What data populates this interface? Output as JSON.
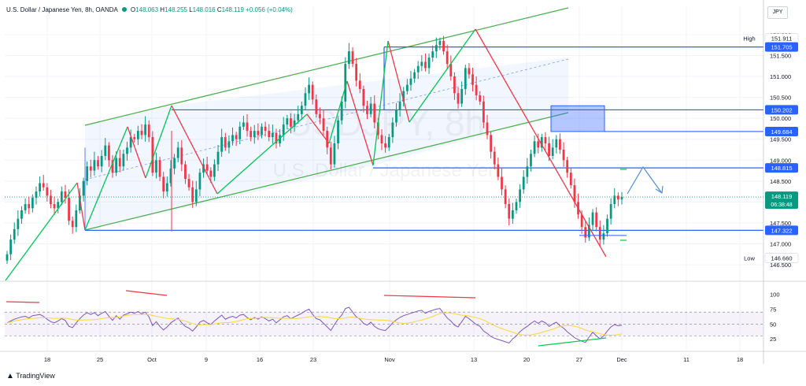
{
  "header": {
    "symbol": "U.S. Dollar / Japanese Yen, 8h, OANDA",
    "o_label": "O",
    "o": "148.063",
    "h_label": "H",
    "h": "148.255",
    "l_label": "L",
    "l": "148.016",
    "c_label": "C",
    "c": "148.119",
    "change": "+0.056 (+0.04%)"
  },
  "currency": "JPY",
  "branding": "TradingView",
  "watermark": {
    "symbol": "USDJPY, 8h",
    "name": "U.S. Dollar / Japanese Yen"
  },
  "colors": {
    "up": "#089981",
    "down": "#f23645",
    "channel": "#4caf50",
    "level": "#2962ff",
    "rsi": "#7e57c2",
    "rsi_ma": "#fdd835",
    "rsi_band": "#7e57c2",
    "zone": "#2962ff",
    "arrow": "#4a90e2"
  },
  "chart_data": {
    "type": "candlestick",
    "timeframe": "8h",
    "ylim": [
      146.2,
      152.3
    ],
    "x_ticks": [
      "18",
      "25",
      "Oct",
      "9",
      "16",
      "23",
      "Nov",
      "13",
      "20",
      "27",
      "Dec",
      "11",
      "18"
    ],
    "y_ticks": [
      "146.500",
      "147.000",
      "147.500",
      "148.000",
      "148.500",
      "149.000",
      "149.500",
      "150.000",
      "150.500",
      "151.000",
      "151.500",
      "152.000"
    ],
    "price_labels": [
      {
        "tag": "High",
        "value": "151.911",
        "kind": "high"
      },
      {
        "tag": "",
        "value": "151.705",
        "kind": "level"
      },
      {
        "tag": "",
        "value": "150.202",
        "kind": "level"
      },
      {
        "tag": "",
        "value": "149.684",
        "kind": "level"
      },
      {
        "tag": "",
        "value": "148.815",
        "kind": "level"
      },
      {
        "tag": "",
        "value": "148.119",
        "kind": "current",
        "countdown": "06:38:48"
      },
      {
        "tag": "",
        "value": "147.322",
        "kind": "level"
      },
      {
        "tag": "Low",
        "value": "146.660",
        "kind": "low"
      }
    ],
    "closes": [
      146.75,
      147.1,
      147.35,
      147.6,
      147.8,
      147.95,
      147.85,
      148.1,
      148.25,
      148.45,
      148.35,
      148.15,
      147.95,
      147.85,
      148.0,
      148.25,
      148.1,
      147.55,
      147.4,
      147.8,
      148.15,
      148.5,
      148.85,
      148.75,
      149.0,
      148.85,
      149.1,
      149.35,
      149.0,
      148.7,
      149.05,
      148.85,
      149.15,
      149.3,
      149.55,
      149.5,
      149.7,
      149.6,
      149.85,
      149.55,
      148.7,
      149.0,
      148.6,
      148.25,
      148.45,
      148.8,
      149.05,
      149.3,
      148.9,
      148.55,
      148.35,
      148.0,
      148.3,
      148.7,
      148.9,
      148.75,
      148.6,
      148.9,
      149.2,
      149.55,
      149.3,
      149.45,
      149.6,
      149.5,
      149.8,
      149.9,
      149.7,
      149.55,
      149.7,
      149.6,
      149.8,
      149.7,
      149.55,
      149.65,
      149.4,
      149.6,
      149.85,
      150.0,
      149.8,
      149.95,
      150.1,
      150.3,
      150.6,
      150.8,
      150.45,
      150.1,
      150.0,
      149.7,
      149.3,
      148.9,
      149.4,
      149.95,
      150.4,
      151.3,
      151.6,
      151.3,
      150.9,
      150.7,
      150.3,
      150.1,
      150.35,
      149.9,
      149.6,
      149.4,
      149.3,
      149.55,
      149.9,
      150.2,
      150.4,
      150.65,
      150.8,
      150.95,
      151.1,
      151.25,
      151.35,
      151.2,
      151.45,
      151.6,
      151.75,
      151.85,
      151.6,
      151.3,
      151.0,
      150.6,
      150.35,
      150.7,
      151.2,
      151.05,
      150.8,
      150.55,
      150.4,
      149.9,
      149.6,
      149.2,
      148.9,
      148.6,
      148.3,
      147.95,
      147.6,
      147.8,
      148.0,
      148.3,
      148.6,
      148.85,
      149.15,
      149.45,
      149.3,
      149.55,
      149.4,
      149.1,
      149.3,
      149.5,
      149.25,
      149.0,
      148.7,
      148.4,
      148.0,
      147.7,
      147.4,
      147.15,
      147.45,
      147.75,
      147.4,
      147.1,
      147.25,
      147.6,
      147.95,
      148.15,
      148.06,
      148.12
    ]
  },
  "rsi": {
    "y_ticks": [
      "25",
      "50",
      "75",
      "100"
    ],
    "values": [
      52,
      55,
      58,
      60,
      62,
      63,
      60,
      64,
      65,
      66,
      63,
      58,
      54,
      52,
      55,
      59,
      56,
      46,
      44,
      52,
      59,
      65,
      69,
      66,
      69,
      64,
      68,
      71,
      63,
      56,
      64,
      58,
      65,
      67,
      70,
      68,
      71,
      67,
      70,
      62,
      47,
      54,
      46,
      40,
      45,
      52,
      56,
      60,
      52,
      46,
      43,
      38,
      45,
      53,
      56,
      52,
      49,
      55,
      60,
      65,
      58,
      61,
      63,
      60,
      65,
      66,
      61,
      57,
      61,
      58,
      62,
      59,
      55,
      58,
      52,
      57,
      62,
      64,
      59,
      62,
      65,
      68,
      72,
      75,
      66,
      59,
      57,
      51,
      45,
      39,
      49,
      58,
      65,
      76,
      78,
      70,
      62,
      58,
      51,
      48,
      53,
      46,
      42,
      40,
      39,
      45,
      52,
      57,
      61,
      64,
      66,
      68,
      70,
      72,
      73,
      68,
      71,
      73,
      75,
      76,
      68,
      60,
      55,
      48,
      45,
      54,
      63,
      59,
      54,
      49,
      46,
      38,
      34,
      29,
      26,
      24,
      22,
      20,
      18,
      25,
      30,
      37,
      42,
      46,
      51,
      55,
      51,
      55,
      52,
      46,
      50,
      53,
      47,
      43,
      37,
      32,
      27,
      24,
      21,
      19,
      28,
      36,
      30,
      25,
      30,
      38,
      45,
      49,
      47,
      48
    ]
  }
}
